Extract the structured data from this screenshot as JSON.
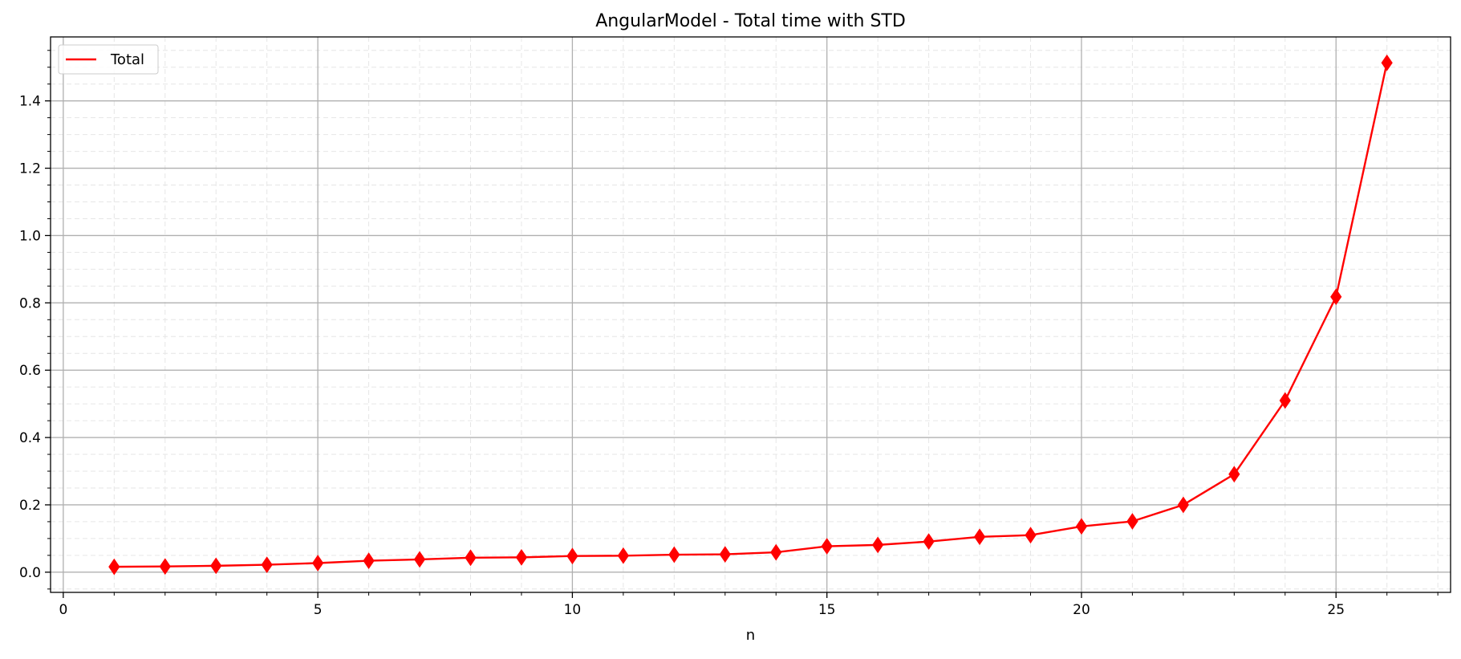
{
  "chart_data": {
    "type": "line",
    "title": "AngularModel - Total time with STD",
    "xlabel": "n",
    "ylabel": "",
    "xlim": [
      -0.25,
      27.25
    ],
    "ylim": [
      -0.06,
      1.59
    ],
    "xticks": [
      0,
      5,
      10,
      15,
      20,
      25
    ],
    "xtick_labels": [
      "0",
      "5",
      "10",
      "15",
      "20",
      "25"
    ],
    "yticks": [
      0.0,
      0.2,
      0.4,
      0.6,
      0.8,
      1.0,
      1.2,
      1.4
    ],
    "ytick_labels": [
      "0.0",
      "0.2",
      "0.4",
      "0.6",
      "0.8",
      "1.0",
      "1.2",
      "1.4"
    ],
    "grid": {
      "major": true,
      "minor": true
    },
    "legend": {
      "position": "top-left",
      "entries": [
        "Total"
      ]
    },
    "series": [
      {
        "name": "Total",
        "color": "#ff0000",
        "marker": "thin-diamond",
        "x": [
          1,
          2,
          3,
          4,
          5,
          6,
          7,
          8,
          9,
          10,
          11,
          12,
          13,
          14,
          15,
          16,
          17,
          18,
          19,
          20,
          21,
          22,
          23,
          24,
          25,
          26
        ],
        "y": [
          0.016,
          0.017,
          0.019,
          0.022,
          0.027,
          0.034,
          0.038,
          0.043,
          0.044,
          0.048,
          0.049,
          0.052,
          0.053,
          0.059,
          0.077,
          0.081,
          0.091,
          0.105,
          0.11,
          0.136,
          0.151,
          0.2,
          0.291,
          0.51,
          0.818,
          1.513
        ]
      }
    ]
  }
}
